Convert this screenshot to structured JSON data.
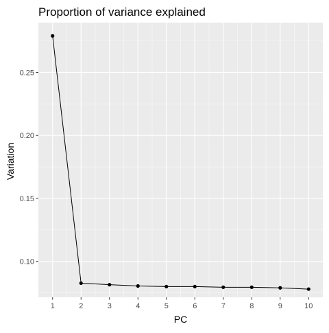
{
  "chart_data": {
    "type": "line",
    "title": "Proportion of variance explained",
    "xlabel": "PC",
    "ylabel": "Variation",
    "x": [
      1,
      2,
      3,
      4,
      5,
      6,
      7,
      8,
      9,
      10
    ],
    "y": [
      0.279,
      0.0827,
      0.0815,
      0.0805,
      0.08,
      0.08,
      0.0795,
      0.0795,
      0.079,
      0.078
    ],
    "xlim": [
      0.5,
      10.5
    ],
    "ylim": [
      0.0715,
      0.2895
    ],
    "x_ticks": [
      1,
      2,
      3,
      4,
      5,
      6,
      7,
      8,
      9,
      10
    ],
    "y_ticks": [
      0.1,
      0.15,
      0.2,
      0.25
    ],
    "y_tick_labels": [
      "0.10",
      "0.15",
      "0.20",
      "0.25"
    ],
    "grid": true,
    "legend": "none",
    "colors": {
      "panel": "#ebebeb",
      "grid_major": "#ffffff",
      "line": "#000000",
      "point": "#000000",
      "tick_label": "#4d4d4d",
      "axis_title": "#000000"
    }
  }
}
